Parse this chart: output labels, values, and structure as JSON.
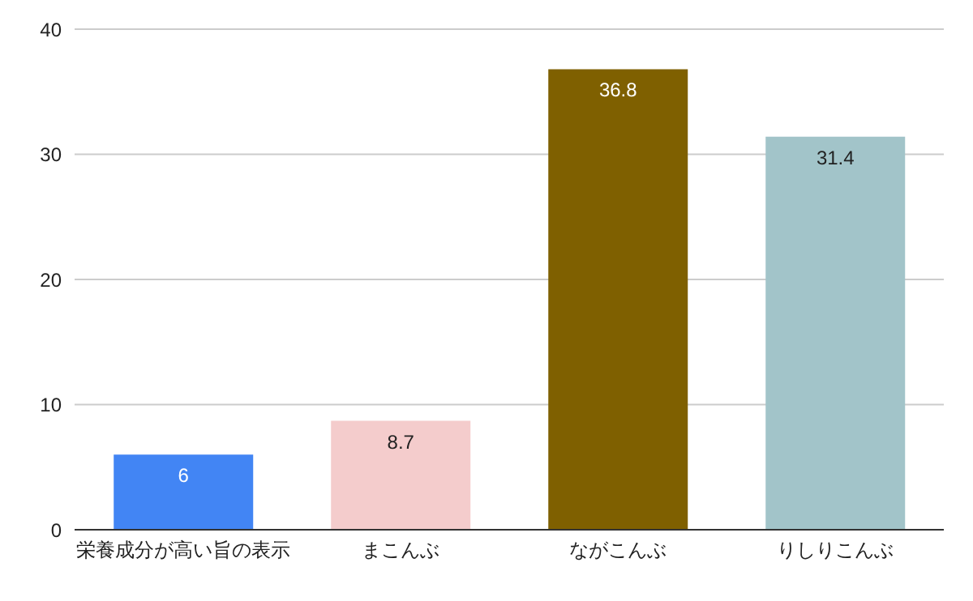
{
  "chart_data": {
    "type": "bar",
    "categories": [
      "栄養成分が高い旨の表示",
      "まこんぶ",
      "ながこんぶ",
      "りしりこんぶ"
    ],
    "values": [
      6,
      8.7,
      36.8,
      31.4
    ],
    "colors": [
      "#4285f4",
      "#f4cccc",
      "#7f6000",
      "#a2c4c9"
    ],
    "ylim": [
      0,
      40
    ],
    "yticks": [
      0,
      10,
      20,
      30,
      40
    ],
    "grid": "y",
    "data_labels": true
  }
}
